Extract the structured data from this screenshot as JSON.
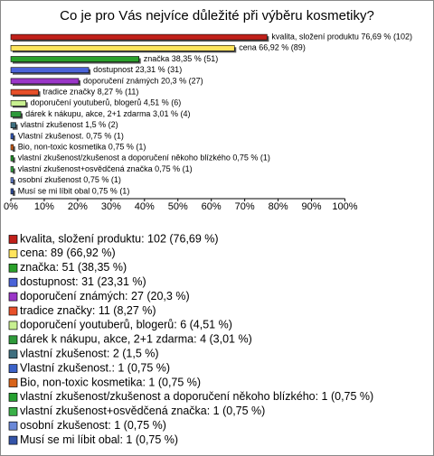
{
  "chart_data": {
    "type": "barh",
    "title": "Co je pro Vás nejvíce důležité při výběru kosmetiky?",
    "categories": [
      "kvalita, složení produktu",
      "cena",
      "značka",
      "dostupnost",
      "doporučení známých",
      "tradice značky",
      "doporučení youtuberů, blogerů",
      "dárek k nákupu, akce, 2+1 zdarma",
      "vlastní zkušenost",
      "Vlastní zkušenost.",
      "Bio, non-toxic kosmetika",
      "vlastní zkušenost/zkušenost a doporučení někoho blízkého",
      "vlastní zkušenost+osvědčená značka",
      "osobní zkušenost",
      "Musí se mi líbit obal"
    ],
    "values": [
      76.69,
      66.92,
      38.35,
      23.31,
      20.3,
      8.27,
      4.51,
      3.01,
      1.5,
      0.75,
      0.75,
      0.75,
      0.75,
      0.75,
      0.75
    ],
    "value_labels": [
      "kvalita, složení produktu 76,69 % (102)",
      "cena 66,92 % (89)",
      "značka 38,35 % (51)",
      "dostupnost 23,31 % (31)",
      "doporučení známých 20,3 % (27)",
      "tradice značky 8,27 % (11)",
      "doporučení youtuberů, blogerů 4,51 % (6)",
      "dárek k nákupu, akce, 2+1 zdarma 3,01 % (4)",
      "vlastní zkušenost 1,5 % (2)",
      "Vlastní zkušenost. 0,75 % (1)",
      "Bio, non-toxic kosmetika 0,75 % (1)",
      "vlastní zkušenost/zkušenost a doporučení někoho blízkého 0,75 % (1)",
      "vlastní zkušenost+osvědčená značka 0,75 % (1)",
      "osobní zkušenost 0,75 % (1)",
      "Musí se mi líbit obal 0,75 % (1)"
    ],
    "legend_labels": [
      "kvalita, složení produktu: 102 (76,69 %)",
      "cena: 89 (66,92 %)",
      "značka: 51 (38,35 %)",
      "dostupnost: 31 (23,31 %)",
      "doporučení známých: 27 (20,3 %)",
      "tradice značky: 11 (8,27 %)",
      "doporučení youtuberů, blogerů: 6 (4,51 %)",
      "dárek k nákupu, akce, 2+1 zdarma: 4 (3,01 %)",
      "vlastní zkušenost: 2 (1,5 %)",
      "Vlastní zkušenost.: 1 (0,75 %)",
      "Bio, non-toxic kosmetika: 1 (0,75 %)",
      "vlastní zkušenost/zkušenost a doporučení někoho blízkého: 1 (0,75 %)",
      "vlastní zkušenost+osvědčená značka: 1 (0,75 %)",
      "osobní zkušenost: 1 (0,75 %)",
      "Musí se mi líbit obal: 1 (0,75 %)"
    ],
    "colors": [
      "#c0201a",
      "#ffe45c",
      "#2aa02a",
      "#4a63d8",
      "#9a36c8",
      "#e8502a",
      "#c8f090",
      "#2e9a3a",
      "#3f7080",
      "#3b62c8",
      "#d8641a",
      "#26a030",
      "#3ab048",
      "#6a88d8",
      "#3454a8"
    ],
    "xlim": [
      0,
      100
    ],
    "xticks": [
      {
        "value": 0,
        "label": "0%"
      },
      {
        "value": 10,
        "label": "10%"
      },
      {
        "value": 20,
        "label": "20%"
      },
      {
        "value": 30,
        "label": "30%"
      },
      {
        "value": 40,
        "label": "40%"
      },
      {
        "value": 50,
        "label": "50%"
      },
      {
        "value": 60,
        "label": "60%"
      },
      {
        "value": 70,
        "label": "70%"
      },
      {
        "value": 80,
        "label": "80%"
      },
      {
        "value": 90,
        "label": "90%"
      },
      {
        "value": 100,
        "label": "100%"
      }
    ]
  }
}
